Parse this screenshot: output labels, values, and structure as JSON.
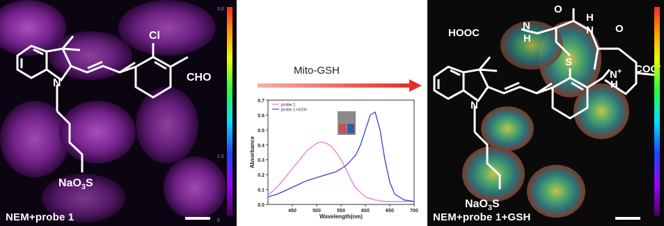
{
  "left_panel": {
    "caption": "NEM+probe 1",
    "colorbar_ticks": [
      "3.0",
      "1.5",
      "0"
    ]
  },
  "right_panel": {
    "caption": "NEM+probe 1+GSH"
  },
  "reaction": {
    "arrow_label": "Mito-GSH",
    "arrow_color": "#e0302a"
  },
  "left_molecule": {
    "labels": {
      "cl": "Cl",
      "cho": "CHO",
      "n": "N",
      "salt": "NaO",
      "salt_sub": "3",
      "salt_s": "S"
    }
  },
  "right_molecule": {
    "labels": {
      "hooc": "HOOC",
      "o1": "O",
      "h1": "H",
      "n1": "N",
      "h2": "H",
      "n2": "N",
      "o2": "O",
      "o3": "O",
      "s": "S",
      "n3": "N",
      "h3": "H",
      "plus": "+",
      "coo": "COO",
      "minus": "-",
      "n_left": "N",
      "salt": "NaO",
      "salt_sub": "3",
      "salt_s": "S"
    }
  },
  "chart_data": {
    "type": "line",
    "xlabel": "Wavelength(nm)",
    "ylabel": "Absorbance",
    "xlim": [
      400,
      700
    ],
    "ylim": [
      0.0,
      0.7
    ],
    "x_ticks": [
      "450",
      "500",
      "550",
      "600",
      "650",
      "700"
    ],
    "y_ticks": [
      "0.0",
      "0.1",
      "0.2",
      "0.3",
      "0.4",
      "0.5",
      "0.6",
      "0.7"
    ],
    "legend_position": "top-left",
    "series": [
      {
        "name": "probe 1",
        "color": "#e27adf",
        "x": [
          400,
          420,
          440,
          460,
          480,
          500,
          510,
          520,
          530,
          540,
          550,
          560,
          570,
          580,
          600,
          620,
          640,
          660,
          680,
          700
        ],
        "y": [
          0.06,
          0.12,
          0.2,
          0.28,
          0.36,
          0.41,
          0.42,
          0.41,
          0.39,
          0.35,
          0.3,
          0.24,
          0.17,
          0.11,
          0.05,
          0.03,
          0.02,
          0.02,
          0.02,
          0.02
        ]
      },
      {
        "name": "probe 1+GSH",
        "color": "#3b3fd0",
        "x": [
          400,
          420,
          440,
          460,
          480,
          500,
          520,
          540,
          560,
          580,
          590,
          600,
          610,
          620,
          630,
          640,
          650,
          660,
          680,
          700
        ],
        "y": [
          0.05,
          0.07,
          0.1,
          0.13,
          0.16,
          0.18,
          0.2,
          0.22,
          0.26,
          0.33,
          0.4,
          0.5,
          0.6,
          0.62,
          0.5,
          0.3,
          0.15,
          0.07,
          0.03,
          0.02
        ]
      }
    ]
  }
}
